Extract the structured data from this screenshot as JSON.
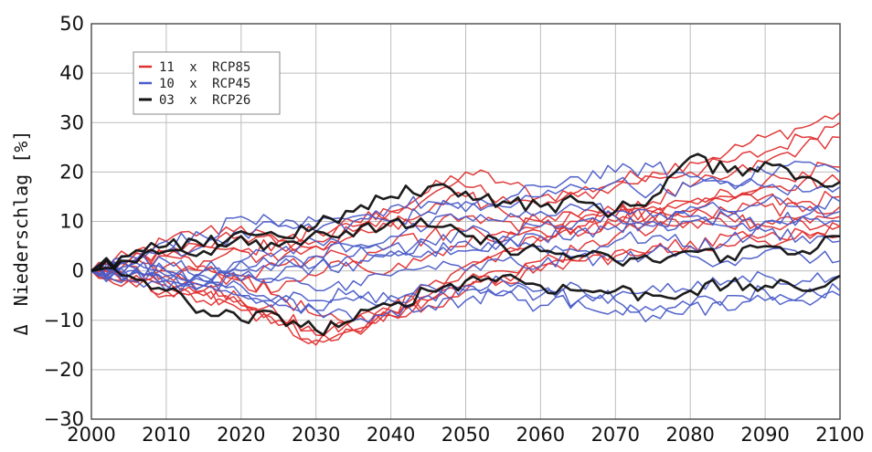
{
  "chart_data": {
    "type": "line",
    "title": "",
    "xlabel": "",
    "ylabel": "Niederschlag [%]",
    "ylabel_symbol": "Δ",
    "xlim": [
      2000,
      2100
    ],
    "ylim": [
      -30,
      50
    ],
    "xticks": [
      2000,
      2010,
      2020,
      2030,
      2040,
      2050,
      2060,
      2070,
      2080,
      2090,
      2100
    ],
    "yticks": [
      -30,
      -20,
      -10,
      0,
      10,
      20,
      30,
      40,
      50
    ],
    "grid": true,
    "legend_placement": "top-left",
    "legend": [
      {
        "count": "11",
        "sep": "x",
        "label": "RCP85",
        "color": "#e03030"
      },
      {
        "count": "10",
        "sep": "x",
        "label": "RCP45",
        "color": "#4a5cc8"
      },
      {
        "count": "03",
        "sep": "x",
        "label": "RCP26",
        "color": "#111111"
      }
    ],
    "series_groups": [
      {
        "label": "RCP85",
        "color": "#e03030",
        "x": [
          2000,
          2005,
          2010,
          2015,
          2020,
          2025,
          2030,
          2035,
          2040,
          2045,
          2050,
          2055,
          2060,
          2065,
          2070,
          2075,
          2080,
          2085,
          2090,
          2095,
          2100
        ],
        "members": [
          [
            0,
            3,
            6,
            8,
            9,
            5,
            6,
            9,
            12,
            16,
            20,
            18,
            15,
            16,
            18,
            20,
            22,
            24,
            27,
            29,
            32
          ],
          [
            0,
            2,
            4,
            5,
            7,
            6,
            8,
            10,
            12,
            15,
            17,
            15,
            13,
            15,
            17,
            19,
            20,
            22,
            24,
            27,
            30
          ],
          [
            0,
            -1,
            -2,
            -4,
            -6,
            -9,
            -13,
            -10,
            -7,
            -5,
            1,
            4,
            6,
            9,
            11,
            14,
            17,
            19,
            22,
            25,
            27
          ],
          [
            0,
            -2,
            -4,
            -6,
            -8,
            -11,
            -14,
            -12,
            -9,
            -6,
            -2,
            0,
            2,
            4,
            7,
            10,
            12,
            15,
            18,
            20,
            21
          ],
          [
            0,
            1,
            1,
            0,
            -2,
            -5,
            -9,
            -12,
            -8,
            -3,
            0,
            4,
            7,
            9,
            10,
            12,
            14,
            16,
            17,
            18,
            18
          ],
          [
            0,
            2,
            3,
            5,
            4,
            2,
            5,
            7,
            9,
            12,
            15,
            12,
            10,
            11,
            12,
            13,
            14,
            14,
            15,
            14,
            15
          ],
          [
            0,
            1,
            -1,
            2,
            4,
            6,
            5,
            8,
            10,
            9,
            11,
            10,
            9,
            10,
            11,
            12,
            11,
            12,
            13,
            12,
            13
          ],
          [
            0,
            -2,
            0,
            -3,
            -1,
            1,
            3,
            2,
            5,
            7,
            8,
            6,
            8,
            7,
            9,
            8,
            10,
            9,
            10,
            11,
            11
          ],
          [
            0,
            1,
            3,
            1,
            -2,
            -4,
            -1,
            2,
            0,
            3,
            5,
            8,
            10,
            11,
            12,
            11,
            10,
            11,
            9,
            10,
            9
          ],
          [
            0,
            -1,
            -3,
            -5,
            -7,
            -9,
            -12,
            -10,
            -8,
            -6,
            -3,
            -1,
            1,
            2,
            4,
            5,
            6,
            5,
            7,
            8,
            9
          ],
          [
            0,
            -2,
            -5,
            -4,
            -6,
            -10,
            -15,
            -12,
            -9,
            -7,
            -4,
            -2,
            0,
            2,
            3,
            4,
            5,
            7,
            6,
            8,
            7
          ]
        ]
      },
      {
        "label": "RCP45",
        "color": "#4a5cc8",
        "x": [
          2000,
          2005,
          2010,
          2015,
          2020,
          2025,
          2030,
          2035,
          2040,
          2045,
          2050,
          2055,
          2060,
          2065,
          2070,
          2075,
          2080,
          2085,
          2090,
          2095,
          2100
        ],
        "members": [
          [
            0,
            3,
            6,
            7,
            11,
            9,
            8,
            10,
            13,
            14,
            12,
            14,
            17,
            19,
            20,
            21,
            19,
            18,
            20,
            22,
            20
          ],
          [
            0,
            2,
            4,
            5,
            8,
            9,
            10,
            11,
            10,
            12,
            14,
            13,
            15,
            17,
            18,
            16,
            17,
            18,
            17,
            16,
            17
          ],
          [
            0,
            1,
            0,
            -1,
            2,
            4,
            6,
            5,
            7,
            9,
            11,
            10,
            12,
            13,
            12,
            11,
            13,
            12,
            14,
            13,
            14
          ],
          [
            0,
            -1,
            -2,
            0,
            2,
            1,
            3,
            5,
            4,
            6,
            8,
            7,
            9,
            10,
            11,
            9,
            10,
            11,
            10,
            11,
            12
          ],
          [
            0,
            0,
            -3,
            -2,
            0,
            2,
            1,
            3,
            5,
            4,
            6,
            5,
            7,
            8,
            9,
            10,
            11,
            9,
            10,
            11,
            10
          ],
          [
            0,
            1,
            2,
            0,
            -2,
            -1,
            1,
            0,
            3,
            5,
            4,
            6,
            5,
            4,
            6,
            7,
            5,
            6,
            8,
            7,
            6
          ],
          [
            0,
            -1,
            -2,
            -3,
            -1,
            -2,
            -4,
            -2,
            -1,
            1,
            0,
            2,
            1,
            3,
            2,
            4,
            3,
            2,
            4,
            3,
            2
          ],
          [
            0,
            -2,
            -4,
            -3,
            -5,
            -7,
            -8,
            -6,
            -5,
            -3,
            -4,
            -2,
            -4,
            -6,
            -5,
            -3,
            -4,
            -2,
            -1,
            -2,
            -1
          ],
          [
            0,
            -1,
            0,
            -2,
            -3,
            -5,
            -6,
            -4,
            -6,
            -5,
            -3,
            -5,
            -7,
            -6,
            -8,
            -9,
            -7,
            -8,
            -6,
            -5,
            -4
          ],
          [
            0,
            1,
            -1,
            -3,
            -5,
            -6,
            -8,
            -10,
            -8,
            -7,
            -6,
            -4,
            -5,
            -3,
            -6,
            -8,
            -7,
            -5,
            -4,
            -6,
            -5
          ]
        ]
      },
      {
        "label": "RCP26",
        "color": "#111111",
        "x": [
          2000,
          2005,
          2010,
          2015,
          2020,
          2025,
          2030,
          2035,
          2040,
          2045,
          2050,
          2055,
          2060,
          2065,
          2070,
          2075,
          2080,
          2085,
          2090,
          2095,
          2100
        ],
        "members": [
          [
            0,
            3,
            5,
            5,
            8,
            7,
            9,
            12,
            15,
            17,
            16,
            14,
            13,
            14,
            12,
            15,
            23,
            20,
            22,
            19,
            18
          ],
          [
            0,
            2,
            4,
            4,
            7,
            5,
            8,
            7,
            10,
            9,
            7,
            5,
            4,
            3,
            2,
            2,
            4,
            3,
            5,
            4,
            7
          ],
          [
            0,
            -1,
            -4,
            -8,
            -10,
            -9,
            -12,
            -10,
            -7,
            -4,
            -2,
            -1,
            -3,
            -4,
            -4,
            -5,
            -4,
            -3,
            -3,
            -4,
            -1
          ]
        ]
      }
    ]
  }
}
